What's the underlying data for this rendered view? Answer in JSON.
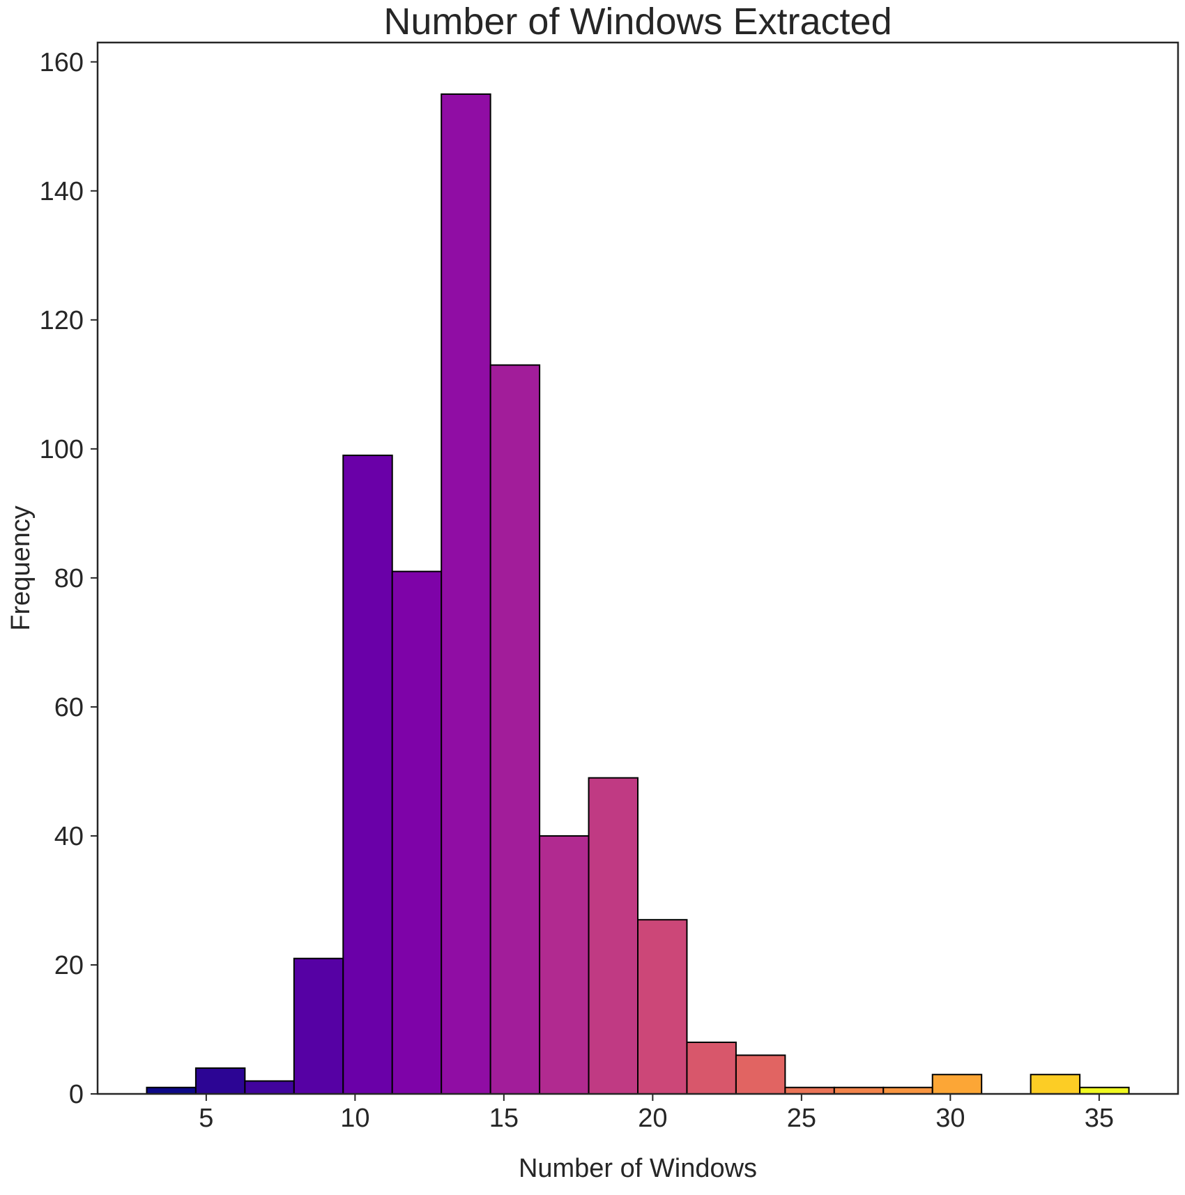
{
  "chart_data": {
    "type": "histogram",
    "title": "Number of Windows Extracted",
    "xlabel": "Number of Windows",
    "ylabel": "Frequency",
    "xlim": [
      1.35,
      37.65
    ],
    "ylim": [
      0,
      163
    ],
    "xticks": [
      5,
      10,
      15,
      20,
      25,
      30,
      35
    ],
    "yticks": [
      0,
      20,
      40,
      60,
      80,
      100,
      120,
      140,
      160
    ],
    "bin_edges": [
      3.0,
      4.65,
      6.3,
      7.95,
      9.6,
      11.25,
      12.9,
      14.55,
      16.2,
      17.85,
      19.5,
      21.15,
      22.8,
      24.45,
      26.1,
      27.75,
      29.4,
      31.05,
      32.7,
      34.35,
      36.0
    ],
    "values": [
      1,
      4,
      2,
      21,
      99,
      81,
      155,
      113,
      40,
      49,
      27,
      8,
      6,
      1,
      1,
      1,
      3,
      0,
      3,
      1
    ],
    "colors": [
      "#0d0887",
      "#2c0594",
      "#41049d",
      "#5601a4",
      "#6a00a8",
      "#7e03a8",
      "#900da4",
      "#a21d9a",
      "#b12a90",
      "#c03a83",
      "#cc4778",
      "#d8576b",
      "#e16462",
      "#ea7457",
      "#f2844b",
      "#f89540",
      "#fca636",
      "#feb72d",
      "#fccd25",
      "#f0f921"
    ],
    "grid": false,
    "legend": "none"
  }
}
